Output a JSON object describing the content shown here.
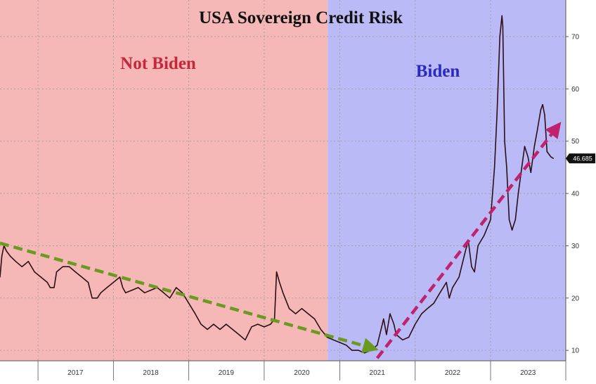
{
  "chart_data": {
    "type": "line",
    "title": "USA Sovereign Credit Risk",
    "xlabel": "",
    "ylabel": "",
    "x_range": [
      "2016-07-01",
      "2023-12-31"
    ],
    "ylim": [
      8,
      77
    ],
    "y_ticks": [
      10,
      20,
      30,
      40,
      50,
      60,
      70
    ],
    "x_tick_labels": [
      "2017",
      "2018",
      "2019",
      "2020",
      "2021",
      "2022",
      "2023"
    ],
    "grid": true,
    "last_value_label": "46.685",
    "regions": [
      {
        "label": "Not Biden",
        "start": "2016-07-01",
        "end": "2020-11-03",
        "color": "#f6b7b7",
        "label_color": "#c4283b"
      },
      {
        "label": "Biden",
        "start": "2020-11-03",
        "end": "2023-12-31",
        "color": "#babaf7",
        "label_color": "#2a2ac0"
      }
    ],
    "trend_arrows": [
      {
        "start": [
          "2016-07-01",
          30.5
        ],
        "end": [
          "2021-06-01",
          10.5
        ],
        "color": "#6a9a1f"
      },
      {
        "start": [
          "2021-07-01",
          8.5
        ],
        "end": [
          "2023-11-15",
          52.5
        ],
        "color": "#c0226e"
      }
    ],
    "series": [
      {
        "color": "#2d0f14",
        "points": [
          [
            "2016-07-01",
            24
          ],
          [
            "2016-07-10",
            28
          ],
          [
            "2016-07-20",
            30
          ],
          [
            "2016-08-01",
            29
          ],
          [
            "2016-08-20",
            28
          ],
          [
            "2016-09-15",
            27
          ],
          [
            "2016-10-15",
            26
          ],
          [
            "2016-11-15",
            27
          ],
          [
            "2016-12-15",
            25
          ],
          [
            "2017-01-15",
            24
          ],
          [
            "2017-02-15",
            23
          ],
          [
            "2017-03-01",
            22
          ],
          [
            "2017-03-20",
            22
          ],
          [
            "2017-04-01",
            25
          ],
          [
            "2017-05-01",
            26
          ],
          [
            "2017-06-01",
            26
          ],
          [
            "2017-07-01",
            25
          ],
          [
            "2017-08-01",
            24
          ],
          [
            "2017-09-01",
            23
          ],
          [
            "2017-09-20",
            20
          ],
          [
            "2017-10-15",
            20
          ],
          [
            "2017-11-01",
            21
          ],
          [
            "2017-12-01",
            22
          ],
          [
            "2018-01-01",
            23
          ],
          [
            "2018-02-01",
            24
          ],
          [
            "2018-02-15",
            22
          ],
          [
            "2018-03-01",
            21
          ],
          [
            "2018-04-01",
            21.5
          ],
          [
            "2018-05-01",
            22
          ],
          [
            "2018-06-01",
            21
          ],
          [
            "2018-07-01",
            21.5
          ],
          [
            "2018-08-01",
            22
          ],
          [
            "2018-09-01",
            21
          ],
          [
            "2018-10-01",
            20
          ],
          [
            "2018-11-01",
            22
          ],
          [
            "2018-12-01",
            21
          ],
          [
            "2019-01-01",
            19
          ],
          [
            "2019-02-01",
            17
          ],
          [
            "2019-03-01",
            15
          ],
          [
            "2019-04-01",
            14
          ],
          [
            "2019-05-01",
            15
          ],
          [
            "2019-06-01",
            14
          ],
          [
            "2019-07-01",
            15
          ],
          [
            "2019-08-01",
            14
          ],
          [
            "2019-09-01",
            13
          ],
          [
            "2019-10-01",
            12
          ],
          [
            "2019-11-01",
            14.5
          ],
          [
            "2019-12-01",
            15
          ],
          [
            "2020-01-01",
            14.5
          ],
          [
            "2020-02-01",
            15
          ],
          [
            "2020-02-20",
            16
          ],
          [
            "2020-03-01",
            25
          ],
          [
            "2020-03-15",
            23
          ],
          [
            "2020-04-01",
            21
          ],
          [
            "2020-05-01",
            18
          ],
          [
            "2020-06-01",
            17
          ],
          [
            "2020-07-01",
            18
          ],
          [
            "2020-08-01",
            17
          ],
          [
            "2020-09-01",
            16
          ],
          [
            "2020-10-01",
            14
          ],
          [
            "2020-11-01",
            12.5
          ],
          [
            "2020-12-01",
            12
          ],
          [
            "2021-01-01",
            11.5
          ],
          [
            "2021-02-01",
            11
          ],
          [
            "2021-03-01",
            10
          ],
          [
            "2021-04-01",
            10
          ],
          [
            "2021-05-01",
            9.5
          ],
          [
            "2021-06-01",
            10
          ],
          [
            "2021-07-01",
            11
          ],
          [
            "2021-08-01",
            16
          ],
          [
            "2021-08-15",
            13
          ],
          [
            "2021-09-01",
            17
          ],
          [
            "2021-09-20",
            15
          ],
          [
            "2021-10-01",
            13
          ],
          [
            "2021-11-01",
            12
          ],
          [
            "2021-12-01",
            12.5
          ],
          [
            "2022-01-01",
            15
          ],
          [
            "2022-02-01",
            17
          ],
          [
            "2022-03-01",
            18
          ],
          [
            "2022-04-01",
            19
          ],
          [
            "2022-05-01",
            21
          ],
          [
            "2022-06-01",
            23
          ],
          [
            "2022-06-15",
            20
          ],
          [
            "2022-07-01",
            22
          ],
          [
            "2022-08-01",
            24
          ],
          [
            "2022-09-01",
            29
          ],
          [
            "2022-09-15",
            31
          ],
          [
            "2022-10-01",
            26
          ],
          [
            "2022-10-15",
            25
          ],
          [
            "2022-11-01",
            30
          ],
          [
            "2022-12-01",
            32
          ],
          [
            "2023-01-01",
            35
          ],
          [
            "2023-01-20",
            45
          ],
          [
            "2023-02-01",
            55
          ],
          [
            "2023-02-15",
            70
          ],
          [
            "2023-02-25",
            74
          ],
          [
            "2023-03-01",
            72
          ],
          [
            "2023-03-10",
            50
          ],
          [
            "2023-03-20",
            45
          ],
          [
            "2023-04-01",
            35
          ],
          [
            "2023-04-15",
            33
          ],
          [
            "2023-05-01",
            35
          ],
          [
            "2023-05-15",
            40
          ],
          [
            "2023-06-01",
            45
          ],
          [
            "2023-06-15",
            49
          ],
          [
            "2023-07-01",
            47
          ],
          [
            "2023-07-15",
            44
          ],
          [
            "2023-08-01",
            49
          ],
          [
            "2023-08-15",
            52
          ],
          [
            "2023-09-01",
            56
          ],
          [
            "2023-09-10",
            57
          ],
          [
            "2023-09-20",
            55
          ],
          [
            "2023-10-01",
            48
          ],
          [
            "2023-10-20",
            47
          ],
          [
            "2023-11-01",
            46.7
          ]
        ]
      }
    ]
  }
}
